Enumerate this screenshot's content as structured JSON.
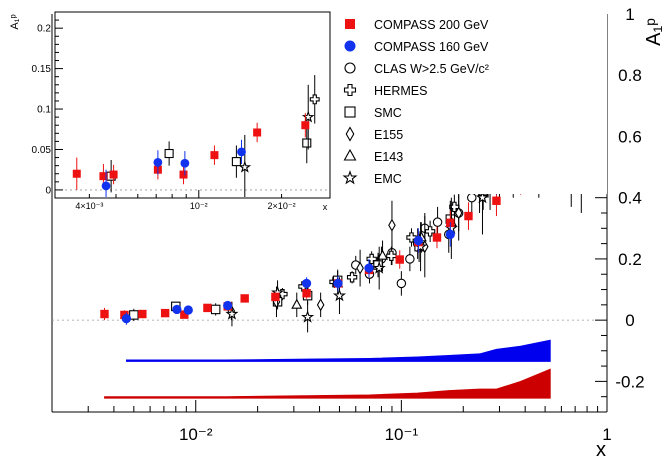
{
  "colors": {
    "compass200": "#ee1111",
    "compass160": "#1133ee",
    "other": "#000000",
    "band_blue": "#0000ee",
    "band_red": "#cc0000"
  },
  "chart_data": {
    "type": "scatter",
    "x_scale": "log",
    "xlabel": "x",
    "ylabel": "A₁ᵖ",
    "xlim": [
      0.002,
      1.0
    ],
    "ylim": [
      -0.3,
      1.0
    ],
    "x_ticks": [
      {
        "value": 0.01,
        "label": "10⁻²"
      },
      {
        "value": 0.1,
        "label": "10⁻¹"
      },
      {
        "value": 1,
        "label": "1"
      }
    ],
    "y_ticks": [
      {
        "value": -0.2,
        "label": "-0.2"
      },
      {
        "value": 0,
        "label": "0"
      },
      {
        "value": 0.2,
        "label": "0.2"
      },
      {
        "value": 0.4,
        "label": "0.4"
      },
      {
        "value": 0.6,
        "label": "0.6"
      },
      {
        "value": 0.8,
        "label": "0.8"
      },
      {
        "value": 1,
        "label": "1"
      }
    ],
    "legend": [
      {
        "label": "COMPASS 200 GeV",
        "marker": "square-filled",
        "series": "compass200"
      },
      {
        "label": "COMPASS 160 GeV",
        "marker": "circle-filled",
        "series": "compass160"
      },
      {
        "label": "CLAS W>2.5 GeV/c²",
        "marker": "circle-open",
        "series": "clas"
      },
      {
        "label": "HERMES",
        "marker": "cross-open",
        "series": "hermes"
      },
      {
        "label": "SMC",
        "marker": "square-open",
        "series": "smc"
      },
      {
        "label": "E155",
        "marker": "diamond-open",
        "series": "e155"
      },
      {
        "label": "E143",
        "marker": "triangle-open",
        "series": "e143"
      },
      {
        "label": "EMC",
        "marker": "star-open",
        "series": "emc"
      }
    ],
    "series": [
      {
        "name": "COMPASS 200 GeV",
        "key": "compass200",
        "marker": "square-filled",
        "color": "#ee1111",
        "points": [
          [
            0.0036,
            0.02,
            0.02
          ],
          [
            0.0045,
            0.017,
            0.015
          ],
          [
            0.0055,
            0.02,
            0.012
          ],
          [
            0.0071,
            0.023,
            0.012
          ],
          [
            0.0088,
            0.018,
            0.012
          ],
          [
            0.0114,
            0.04,
            0.012
          ],
          [
            0.0143,
            0.045,
            0.012
          ],
          [
            0.0173,
            0.071,
            0.012
          ],
          [
            0.0244,
            0.076,
            0.015
          ],
          [
            0.0346,
            0.088,
            0.018
          ],
          [
            0.0492,
            0.12,
            0.02
          ],
          [
            0.0696,
            0.164,
            0.025
          ],
          [
            0.0982,
            0.198,
            0.03
          ],
          [
            0.121,
            0.255,
            0.035
          ],
          [
            0.149,
            0.27,
            0.035
          ],
          [
            0.173,
            0.318,
            0.04
          ],
          [
            0.212,
            0.34,
            0.045
          ],
          [
            0.29,
            0.39,
            0.05
          ],
          [
            0.38,
            0.48,
            0.07
          ],
          [
            0.53,
            0.73,
            0.1
          ]
        ]
      },
      {
        "name": "COMPASS 160 GeV",
        "key": "compass160",
        "marker": "circle-filled",
        "color": "#1133ee",
        "points": [
          [
            0.0046,
            0.005,
            0.02
          ],
          [
            0.0081,
            0.035,
            0.015
          ],
          [
            0.0092,
            0.033,
            0.015
          ],
          [
            0.0143,
            0.048,
            0.015
          ],
          [
            0.0346,
            0.12,
            0.02
          ],
          [
            0.0492,
            0.12,
            0.025
          ],
          [
            0.0696,
            0.17,
            0.03
          ],
          [
            0.121,
            0.26,
            0.04
          ],
          [
            0.173,
            0.28,
            0.04
          ],
          [
            0.29,
            0.47,
            0.06
          ],
          [
            0.38,
            0.55,
            0.07
          ],
          [
            0.53,
            0.86,
            0.1
          ]
        ]
      },
      {
        "name": "CLAS W>2.5 GeV/c²",
        "key": "clas",
        "marker": "circle-open",
        "color": "#000000",
        "points": [
          [
            0.06,
            0.18,
            0.03
          ],
          [
            0.07,
            0.15,
            0.03
          ],
          [
            0.08,
            0.2,
            0.04
          ],
          [
            0.09,
            0.22,
            0.04
          ],
          [
            0.1,
            0.12,
            0.04
          ],
          [
            0.11,
            0.2,
            0.04
          ],
          [
            0.12,
            0.25,
            0.05
          ],
          [
            0.13,
            0.3,
            0.05
          ],
          [
            0.15,
            0.32,
            0.05
          ],
          [
            0.17,
            0.28,
            0.06
          ],
          [
            0.19,
            0.35,
            0.06
          ],
          [
            0.22,
            0.4,
            0.07
          ],
          [
            0.26,
            0.48,
            0.08
          ],
          [
            0.3,
            0.55,
            0.09
          ],
          [
            0.35,
            0.5,
            0.1
          ],
          [
            0.4,
            0.62,
            0.1
          ],
          [
            0.45,
            0.8,
            0.12
          ],
          [
            0.5,
            0.76,
            0.13
          ],
          [
            0.58,
            0.88,
            0.15
          ],
          [
            0.67,
            0.62,
            0.25
          ],
          [
            0.75,
            0.78,
            0.3
          ]
        ]
      },
      {
        "name": "HERMES",
        "key": "hermes",
        "marker": "cross-open",
        "color": "#000000",
        "points": [
          [
            0.0264,
            0.085,
            0.02
          ],
          [
            0.0334,
            0.11,
            0.02
          ],
          [
            0.0473,
            0.125,
            0.02
          ],
          [
            0.0576,
            0.14,
            0.02
          ],
          [
            0.0717,
            0.2,
            0.025
          ],
          [
            0.0894,
            0.21,
            0.03
          ],
          [
            0.112,
            0.27,
            0.03
          ],
          [
            0.138,
            0.29,
            0.035
          ],
          [
            0.181,
            0.37,
            0.04
          ],
          [
            0.264,
            0.45,
            0.05
          ],
          [
            0.412,
            0.64,
            0.08
          ]
        ]
      },
      {
        "name": "SMC",
        "key": "smc",
        "marker": "square-open",
        "color": "#000000",
        "points": [
          [
            0.005,
            0.017,
            0.02
          ],
          [
            0.008,
            0.045,
            0.015
          ],
          [
            0.0125,
            0.035,
            0.02
          ],
          [
            0.025,
            0.06,
            0.025
          ],
          [
            0.035,
            0.08,
            0.03
          ],
          [
            0.049,
            0.13,
            0.035
          ],
          [
            0.077,
            0.18,
            0.04
          ],
          [
            0.122,
            0.24,
            0.05
          ],
          [
            0.173,
            0.33,
            0.06
          ],
          [
            0.27,
            0.44,
            0.08
          ],
          [
            0.35,
            0.6,
            0.1
          ]
        ]
      },
      {
        "name": "E155",
        "key": "e155",
        "marker": "diamond-open",
        "color": "#000000",
        "points": [
          [
            0.0149,
            0.03,
            0.03
          ],
          [
            0.0247,
            0.06,
            0.05
          ],
          [
            0.0405,
            0.05,
            0.04
          ],
          [
            0.063,
            0.17,
            0.06
          ],
          [
            0.09,
            0.31,
            0.08
          ],
          [
            0.13,
            0.24,
            0.1
          ],
          [
            0.19,
            0.35,
            0.09
          ],
          [
            0.24,
            0.45,
            0.1
          ],
          [
            0.3,
            0.52,
            0.12
          ],
          [
            0.35,
            0.6,
            0.15
          ],
          [
            0.42,
            0.6,
            0.12
          ],
          [
            0.5,
            0.7,
            0.2
          ],
          [
            0.75,
            0.6,
            0.25
          ]
        ]
      },
      {
        "name": "E143",
        "key": "e143",
        "marker": "triangle-open",
        "color": "#000000",
        "points": [
          [
            0.031,
            0.05,
            0.04
          ],
          [
            0.049,
            0.12,
            0.04
          ],
          [
            0.081,
            0.21,
            0.05
          ],
          [
            0.125,
            0.27,
            0.05
          ],
          [
            0.175,
            0.32,
            0.05
          ],
          [
            0.25,
            0.42,
            0.06
          ],
          [
            0.35,
            0.55,
            0.07
          ],
          [
            0.5,
            0.7,
            0.1
          ],
          [
            0.6,
            0.68,
            0.12
          ],
          [
            0.75,
            0.92,
            0.15
          ]
        ]
      },
      {
        "name": "EMC",
        "key": "emc",
        "marker": "star-open",
        "color": "#000000",
        "points": [
          [
            0.015,
            0.02,
            0.04
          ],
          [
            0.025,
            0.09,
            0.04
          ],
          [
            0.035,
            0.01,
            0.05
          ],
          [
            0.05,
            0.08,
            0.06
          ],
          [
            0.078,
            0.17,
            0.07
          ],
          [
            0.124,
            0.24,
            0.08
          ],
          [
            0.175,
            0.3,
            0.1
          ],
          [
            0.248,
            0.4,
            0.12
          ],
          [
            0.344,
            0.6,
            0.15
          ],
          [
            0.466,
            0.6,
            0.2
          ]
        ]
      }
    ],
    "systematic_bands": [
      {
        "key": "band160",
        "color": "#0000ee",
        "baseline": -0.13,
        "points": [
          [
            0.0046,
            0.0
          ],
          [
            0.008,
            0.0
          ],
          [
            0.014,
            0.0
          ],
          [
            0.035,
            0.003
          ],
          [
            0.07,
            0.005
          ],
          [
            0.12,
            0.01
          ],
          [
            0.17,
            0.015
          ],
          [
            0.24,
            0.02
          ],
          [
            0.29,
            0.035
          ],
          [
            0.38,
            0.045
          ],
          [
            0.53,
            0.065
          ]
        ]
      },
      {
        "key": "band200",
        "color": "#cc0000",
        "baseline": -0.25,
        "points": [
          [
            0.0036,
            0.0
          ],
          [
            0.008,
            0.0
          ],
          [
            0.014,
            0.0
          ],
          [
            0.03,
            0.003
          ],
          [
            0.07,
            0.006
          ],
          [
            0.12,
            0.012
          ],
          [
            0.17,
            0.02
          ],
          [
            0.24,
            0.025
          ],
          [
            0.29,
            0.025
          ],
          [
            0.38,
            0.05
          ],
          [
            0.53,
            0.09
          ]
        ]
      }
    ],
    "inset": {
      "type": "scatter",
      "x_scale": "log",
      "xlabel": "x",
      "ylabel": "A₁ᵖ",
      "xlim": [
        0.003,
        0.03
      ],
      "ylim": [
        -0.01,
        0.22
      ],
      "x_ticks": [
        {
          "value": 0.004,
          "label": "4×10⁻³"
        },
        {
          "value": 0.01,
          "label": "10⁻²"
        },
        {
          "value": 0.02,
          "label": "2×10⁻²"
        }
      ],
      "y_ticks": [
        {
          "value": 0,
          "label": "0"
        },
        {
          "value": 0.05,
          "label": "0.05"
        },
        {
          "value": 0.1,
          "label": "0.1"
        },
        {
          "value": 0.15,
          "label": "0.15"
        },
        {
          "value": 0.2,
          "label": "0.2"
        }
      ],
      "series": [
        {
          "key": "compass200",
          "marker": "square-filled",
          "color": "#ee1111",
          "points": [
            [
              0.0036,
              0.02,
              0.02
            ],
            [
              0.0045,
              0.017,
              0.015
            ],
            [
              0.0049,
              0.019,
              0.012
            ],
            [
              0.0071,
              0.025,
              0.012
            ],
            [
              0.0088,
              0.019,
              0.012
            ],
            [
              0.0114,
              0.043,
              0.012
            ],
            [
              0.0163,
              0.071,
              0.012
            ],
            [
              0.0244,
              0.08,
              0.015
            ]
          ]
        },
        {
          "key": "compass160",
          "marker": "circle-filled",
          "color": "#1133ee",
          "points": [
            [
              0.0046,
              0.005,
              0.02
            ],
            [
              0.0071,
              0.034,
              0.015
            ],
            [
              0.0089,
              0.033,
              0.015
            ],
            [
              0.0143,
              0.047,
              0.015
            ]
          ]
        },
        {
          "key": "smc",
          "marker": "square-open",
          "color": "#000000",
          "points": [
            [
              0.0048,
              0.017,
              0.02
            ],
            [
              0.0078,
              0.045,
              0.015
            ],
            [
              0.0137,
              0.035,
              0.02
            ],
            [
              0.0247,
              0.058,
              0.025
            ]
          ]
        },
        {
          "key": "hermes",
          "marker": "cross-open",
          "color": "#000000",
          "points": [
            [
              0.0264,
              0.112,
              0.03
            ]
          ]
        },
        {
          "key": "emc",
          "marker": "star-open",
          "color": "#000000",
          "points": [
            [
              0.0147,
              0.028,
              0.04
            ],
            [
              0.025,
              0.09,
              0.04
            ]
          ]
        }
      ]
    }
  }
}
